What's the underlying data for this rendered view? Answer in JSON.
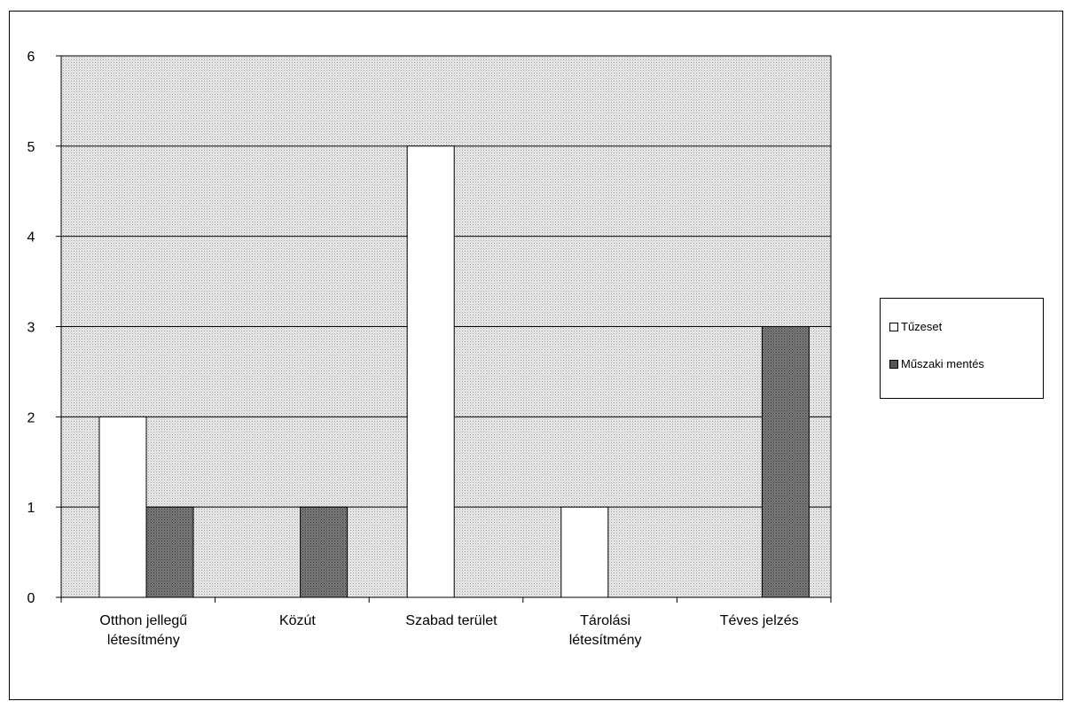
{
  "chart_data": {
    "type": "bar",
    "categories": [
      "Otthon jellegű létesítmény",
      "Közút",
      "Szabad terület",
      "Tárolási létesítmény",
      "Téves jelzés"
    ],
    "category_lines": [
      [
        "Otthon jellegű",
        "létesítmény"
      ],
      [
        "Közút"
      ],
      [
        "Szabad terület"
      ],
      [
        "Tárolási",
        "létesítmény"
      ],
      [
        "Téves jelzés"
      ]
    ],
    "series": [
      {
        "name": "Tűzeset",
        "values": [
          2,
          0,
          5,
          1,
          0
        ],
        "color": "#ffffff"
      },
      {
        "name": "Műszaki mentés",
        "values": [
          1,
          1,
          0,
          0,
          3
        ],
        "color": "#777777"
      }
    ],
    "ylim": [
      0,
      6
    ],
    "yticks": [
      "0",
      "1",
      "2",
      "3",
      "4",
      "5",
      "6"
    ],
    "grid": true,
    "legend_position": "right",
    "plot_background": "#dcdcdc"
  }
}
